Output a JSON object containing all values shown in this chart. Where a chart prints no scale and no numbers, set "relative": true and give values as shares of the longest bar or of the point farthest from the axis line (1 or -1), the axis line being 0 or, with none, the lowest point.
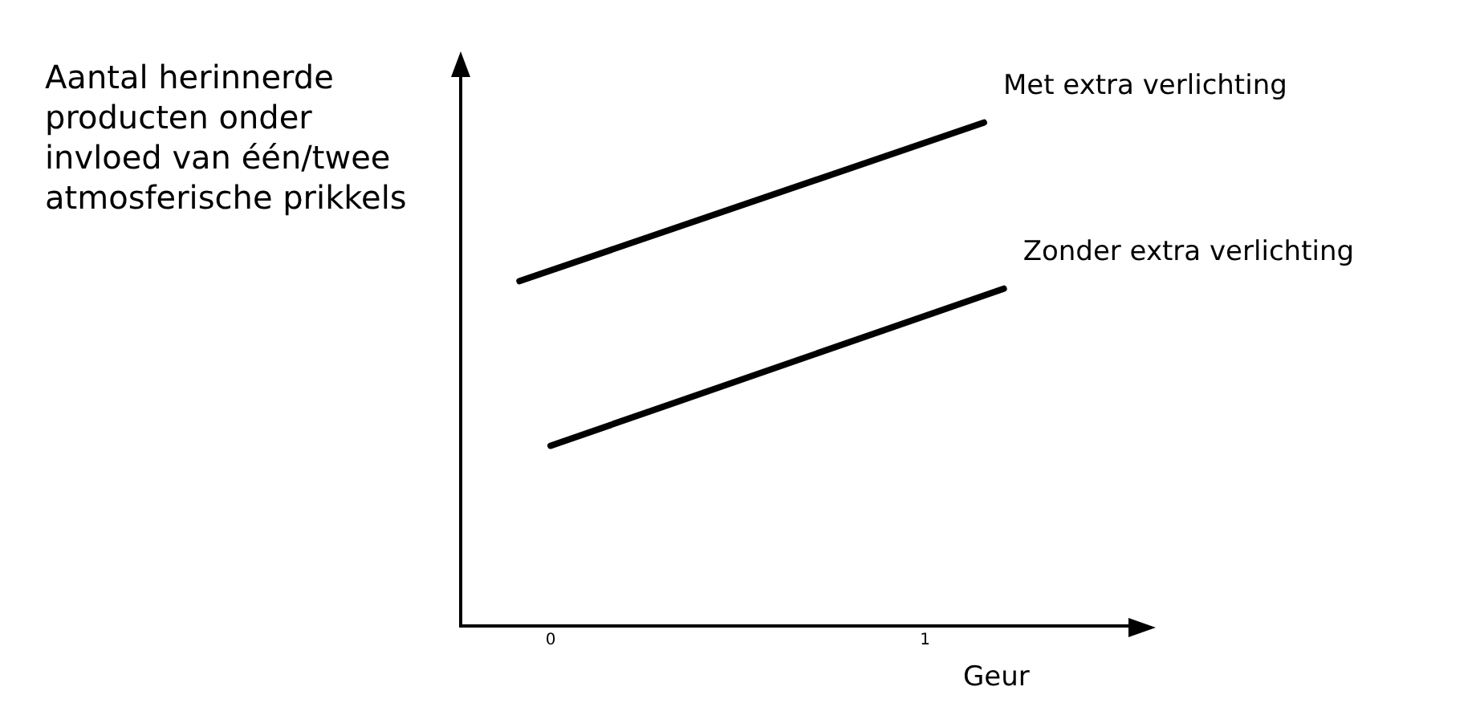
{
  "chart_data": {
    "type": "line",
    "relative": true,
    "ylabel": "Aantal herinnerde producten onder invloed van één/twee atmosferische prikkels",
    "xlabel": "Geur",
    "xlim": [
      -0.24,
      1.56
    ],
    "xticks": [
      0,
      1
    ],
    "legend": false,
    "marker": "none",
    "line_style": "solid",
    "grid": false,
    "series": [
      {
        "name": "Met extra verlichting",
        "color": "#000000",
        "x": [
          -0.083,
          1.157
        ],
        "values": [
          0.685,
          1
        ]
      },
      {
        "name": "Zonder extra verlichting",
        "color": "#000000",
        "x": [
          0,
          1.21
        ],
        "values": [
          0.358,
          0.67
        ]
      }
    ]
  }
}
